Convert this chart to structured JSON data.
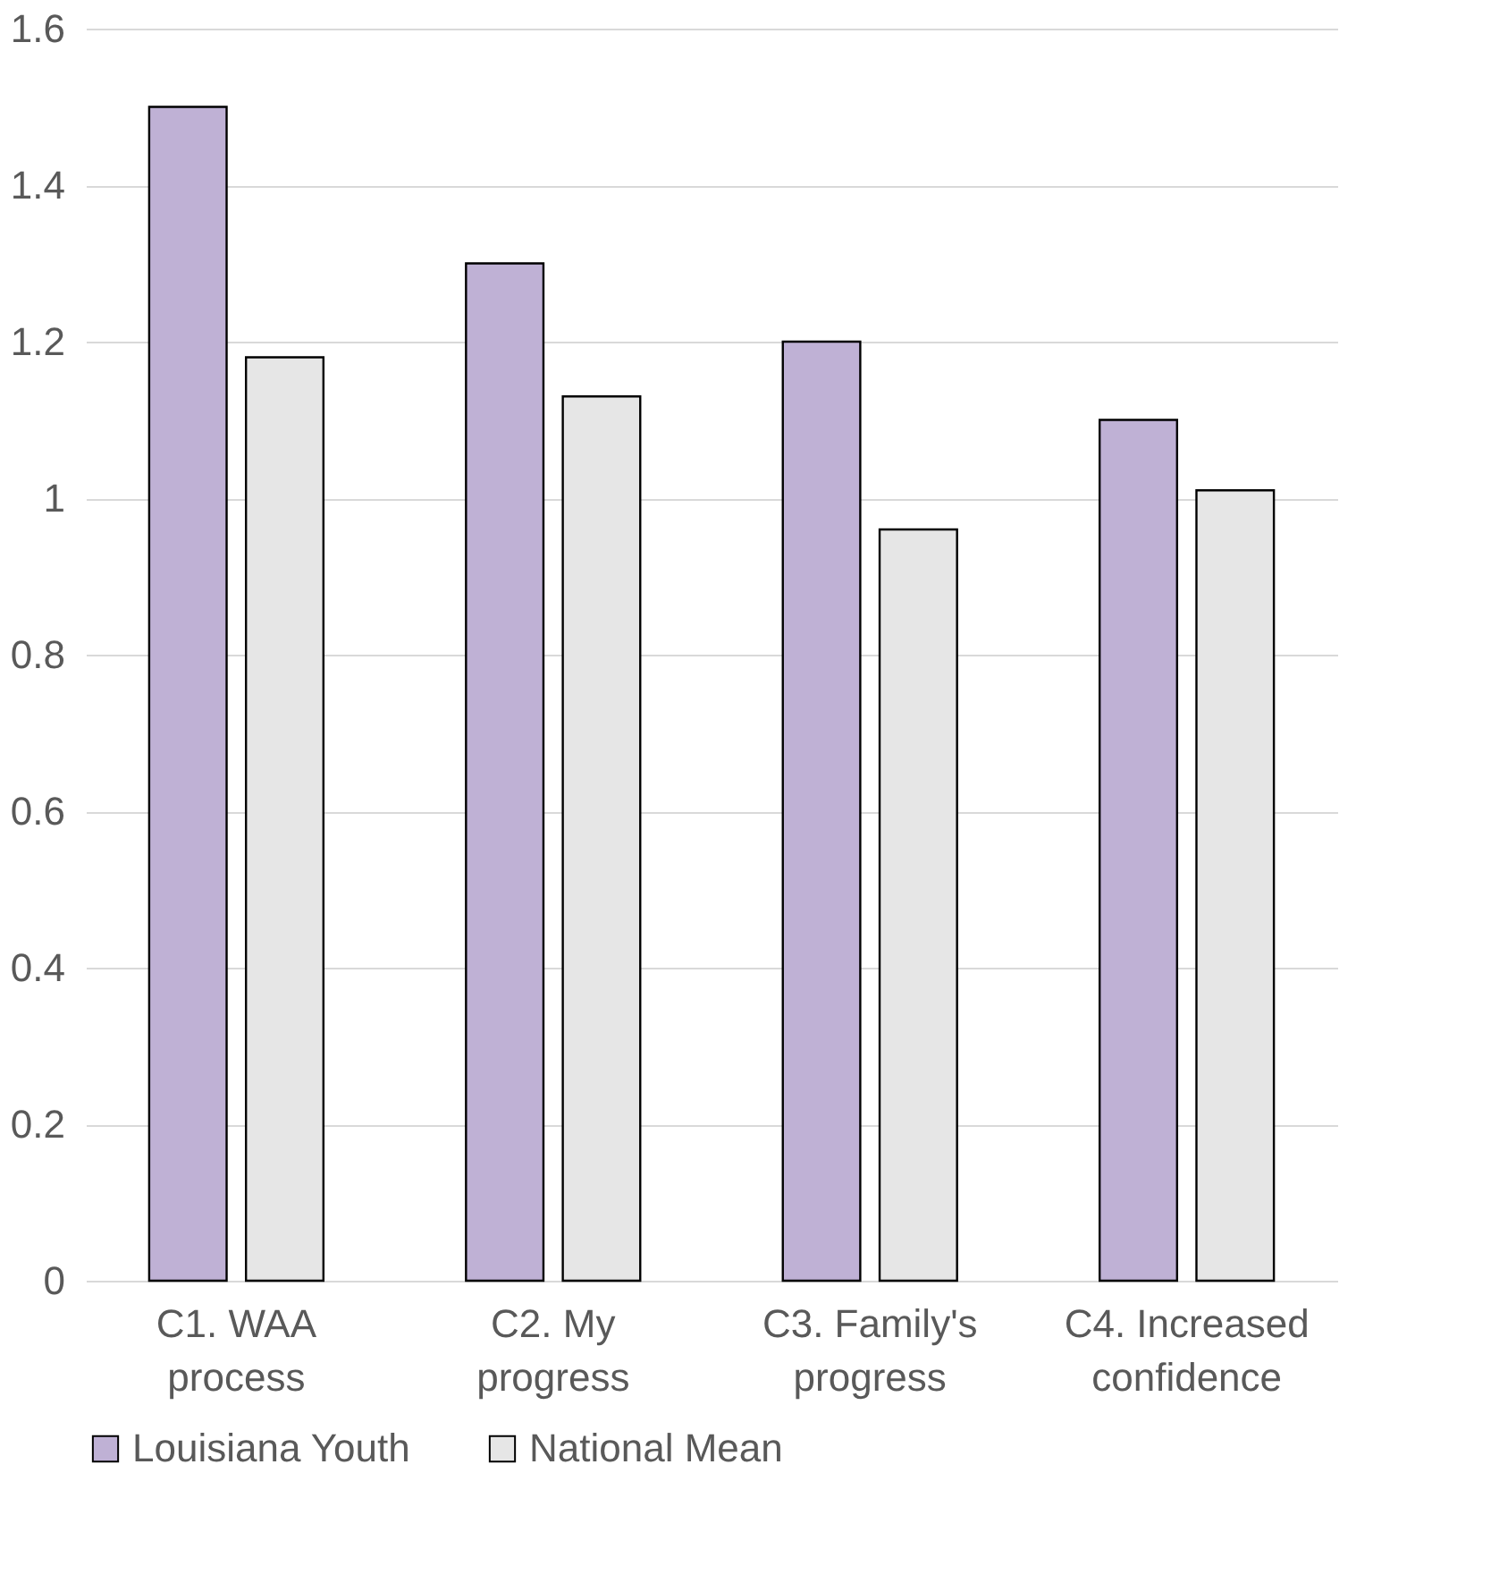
{
  "chart_data": {
    "type": "bar",
    "categories": [
      "C1. WAA process",
      "C2. My progress",
      "C3. Family's progress",
      "C4. Increased confidence"
    ],
    "series": [
      {
        "name": "Louisiana Youth",
        "color": "#bfb1d5",
        "values": [
          1.5,
          1.3,
          1.2,
          1.1
        ]
      },
      {
        "name": "National Mean",
        "color": "#e6e6e6",
        "values": [
          1.18,
          1.13,
          0.96,
          1.01
        ]
      }
    ],
    "ylim": [
      0,
      1.6
    ],
    "yticks": [
      0,
      0.2,
      0.4,
      0.6,
      0.8,
      1,
      1.2,
      1.4,
      1.6
    ],
    "grid": "y",
    "legend": "bottom"
  }
}
